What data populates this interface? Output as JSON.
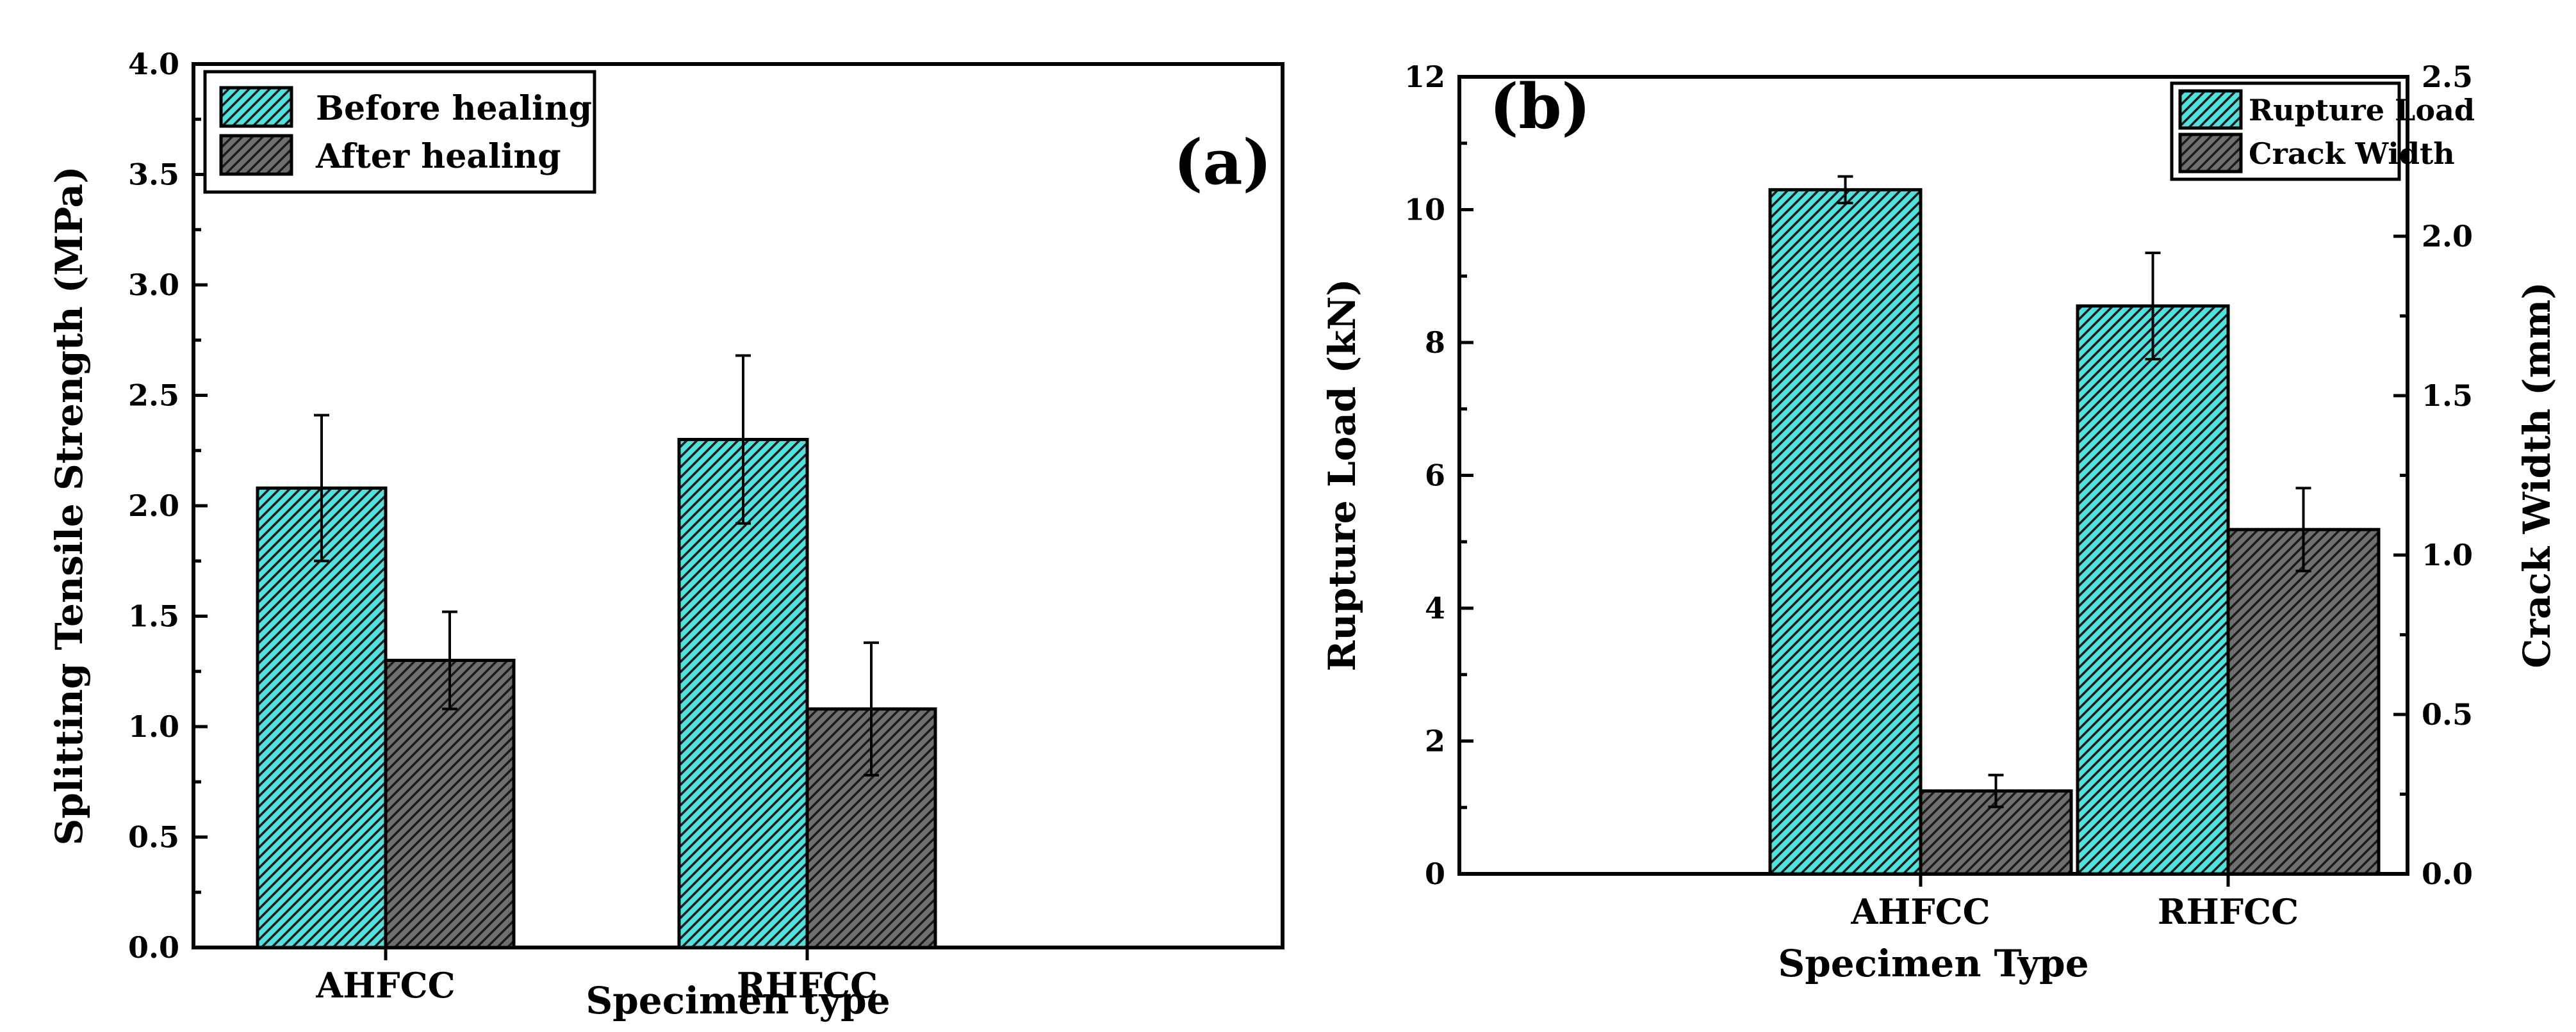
{
  "colors": {
    "cyan": "#53e0dc",
    "gray": "#6e6e6e",
    "hatch": "#1a1a1a"
  },
  "chart_data": [
    {
      "id": "a",
      "type": "bar",
      "panel_label": "(a)",
      "xlabel": "Specimen type",
      "ylabel": "Splitting Tensile Strength (MPa)",
      "ylim": [
        0,
        4.0
      ],
      "yticks": [
        "0.0",
        "0.5",
        "1.0",
        "1.5",
        "2.0",
        "2.5",
        "3.0",
        "3.5",
        "4.0"
      ],
      "categories": [
        "AHFCC",
        "RHFCC"
      ],
      "series": [
        {
          "name": "Before healing",
          "color": "cyan",
          "values": [
            2.08,
            2.3
          ],
          "errors": [
            0.33,
            0.38
          ]
        },
        {
          "name": "After healing",
          "color": "gray",
          "values": [
            1.3,
            1.08
          ],
          "errors": [
            0.22,
            0.3
          ]
        }
      ],
      "legend": "top-left"
    },
    {
      "id": "b",
      "type": "bar",
      "panel_label": "(b)",
      "xlabel": "Specimen Type",
      "ylabel": "Rupture Load (kN)",
      "ylabel_right": "Crack Width (mm)",
      "ylim": [
        0,
        12
      ],
      "ylim_right": [
        0,
        2.5
      ],
      "yticks": [
        "0",
        "2",
        "4",
        "6",
        "8",
        "10",
        "12"
      ],
      "yticks_right": [
        "0.0",
        "0.5",
        "1.0",
        "1.5",
        "2.0",
        "2.5"
      ],
      "categories": [
        "AHFCC",
        "RHFCC"
      ],
      "series": [
        {
          "name": "Rupture Load",
          "color": "cyan",
          "axis": "left",
          "values": [
            10.3,
            8.55
          ],
          "errors": [
            0.2,
            0.8
          ]
        },
        {
          "name": "Crack Width",
          "color": "gray",
          "axis": "right",
          "values": [
            0.26,
            1.08
          ],
          "errors": [
            0.05,
            0.13
          ]
        }
      ],
      "legend": "top-right"
    }
  ]
}
